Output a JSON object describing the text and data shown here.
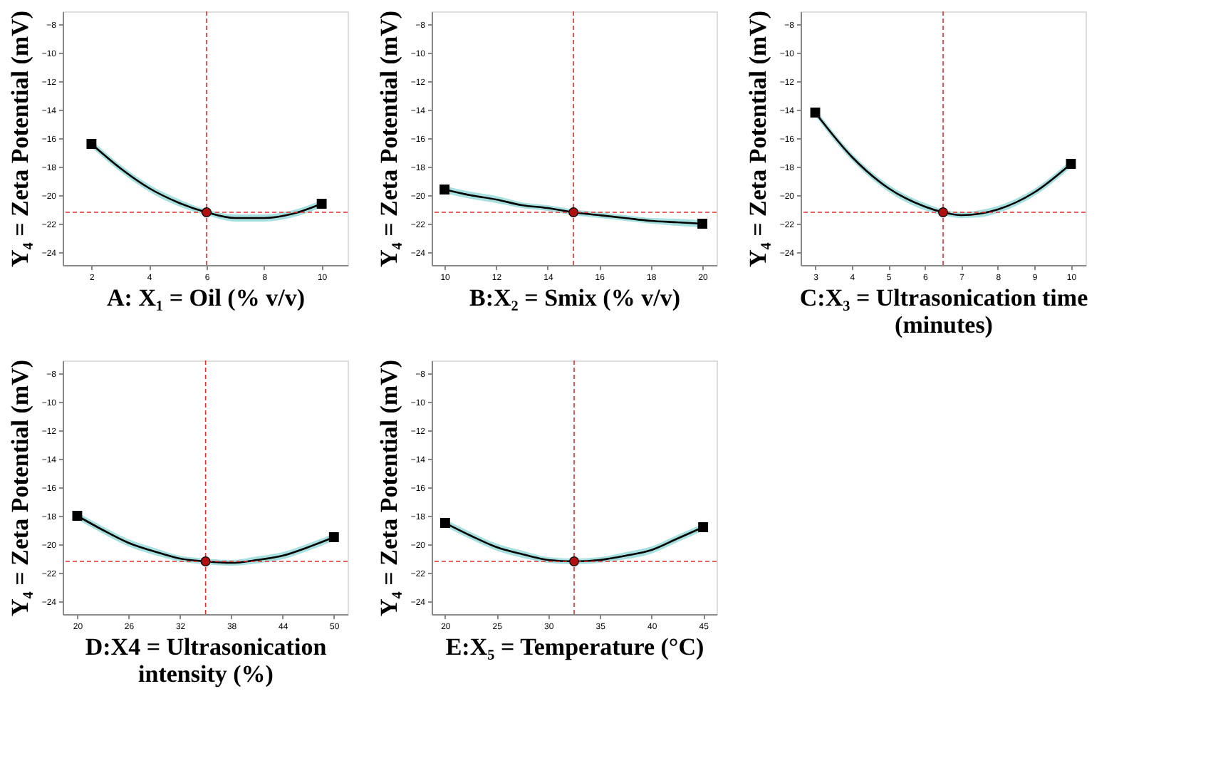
{
  "chart_data": [
    {
      "type": "line",
      "xlabel": "A: X₁ = Oil (% v/v)",
      "ylabel": "Y₄ = Zeta Potential (mV)",
      "xlim": [
        1.0,
        10.9
      ],
      "xticks": [
        2,
        4,
        6,
        8,
        10
      ],
      "ylim": [
        -24.9,
        -7.1
      ],
      "yticks": [
        -8,
        -10,
        -12,
        -14,
        -16,
        -18,
        -20,
        -22,
        -24
      ],
      "grid": false,
      "ref_lines": [
        {
          "axis": "x",
          "value": 6,
          "color": "#e03030",
          "line_style": "dashed"
        },
        {
          "axis": "y",
          "value": -21.2,
          "color": "#e03030",
          "line_style": "dashed"
        }
      ],
      "series": [
        {
          "color": "#000000",
          "x": [
            2,
            3,
            4,
            5,
            6,
            7,
            8,
            9,
            10
          ],
          "values": [
            -16.4,
            -18.1,
            -19.5,
            -20.5,
            -21.2,
            -21.6,
            -21.6,
            -21.3,
            -20.6
          ],
          "lower": [
            -16.65,
            -18.35,
            -19.75,
            -20.75,
            -21.4,
            -21.85,
            -21.85,
            -21.55,
            -20.85
          ],
          "upper": [
            -16.15,
            -17.85,
            -19.25,
            -20.25,
            -21.0,
            -21.35,
            -21.35,
            -21.05,
            -20.35
          ]
        },
        {
          "type": "scatter",
          "marker": "square",
          "color": "#000000",
          "x": [
            2,
            10
          ],
          "values": [
            -16.4,
            -20.6
          ]
        },
        {
          "type": "scatter",
          "marker": "circle",
          "color": "#b01010",
          "x": [
            6
          ],
          "values": [
            -21.2
          ]
        }
      ]
    },
    {
      "type": "line",
      "xlabel": "B:X₂ = Smix (% v/v)",
      "ylabel": "Y₄ = Zeta Potential (mV)",
      "xlim": [
        9.5,
        20.55
      ],
      "xticks": [
        10,
        12,
        14,
        16,
        18,
        20
      ],
      "ylim": [
        -24.9,
        -7.1
      ],
      "yticks": [
        -8,
        -10,
        -12,
        -14,
        -16,
        -18,
        -20,
        -22,
        -24
      ],
      "grid": false,
      "ref_lines": [
        {
          "axis": "x",
          "value": 15,
          "color": "#e03030",
          "line_style": "dashed"
        },
        {
          "axis": "y",
          "value": -21.2,
          "color": "#e03030",
          "line_style": "dashed"
        }
      ],
      "series": [
        {
          "color": "#000000",
          "x": [
            10,
            11,
            12,
            13,
            14,
            15,
            16,
            17,
            18,
            19,
            20
          ],
          "values": [
            -19.6,
            -20.0,
            -20.3,
            -20.7,
            -20.9,
            -21.2,
            -21.4,
            -21.6,
            -21.8,
            -21.9,
            -22.0
          ],
          "lower": [
            -19.85,
            -20.25,
            -20.55,
            -20.9,
            -21.1,
            -21.4,
            -21.6,
            -21.8,
            -22.0,
            -22.15,
            -22.25
          ],
          "upper": [
            -19.35,
            -19.75,
            -20.05,
            -20.5,
            -20.7,
            -21.0,
            -21.2,
            -21.4,
            -21.6,
            -21.65,
            -21.75
          ]
        },
        {
          "type": "scatter",
          "marker": "square",
          "color": "#000000",
          "x": [
            10,
            20
          ],
          "values": [
            -19.6,
            -22.0
          ]
        },
        {
          "type": "scatter",
          "marker": "circle",
          "color": "#b01010",
          "x": [
            15
          ],
          "values": [
            -21.2
          ]
        }
      ]
    },
    {
      "type": "line",
      "xlabel": "C:X₃ = Ultrasonication time (minutes)",
      "ylabel": "Y₄ = Zeta Potential (mV)",
      "xlim": [
        2.6,
        10.4
      ],
      "xticks": [
        3,
        4,
        5,
        6,
        7,
        8,
        9,
        10
      ],
      "ylim": [
        -24.9,
        -7.1
      ],
      "yticks": [
        -8,
        -10,
        -12,
        -14,
        -16,
        -18,
        -20,
        -22,
        -24
      ],
      "grid": false,
      "ref_lines": [
        {
          "axis": "x",
          "value": 6.5,
          "color": "#e03030",
          "line_style": "dashed"
        },
        {
          "axis": "y",
          "value": -21.2,
          "color": "#e03030",
          "line_style": "dashed"
        }
      ],
      "series": [
        {
          "color": "#000000",
          "x": [
            3,
            4,
            5,
            6,
            6.5,
            7,
            7.5,
            8,
            9,
            10
          ],
          "values": [
            -14.2,
            -17.3,
            -19.5,
            -20.8,
            -21.2,
            -21.4,
            -21.3,
            -21.0,
            -19.8,
            -17.8
          ],
          "lower": [
            -14.45,
            -17.55,
            -19.75,
            -21.05,
            -21.4,
            -21.6,
            -21.55,
            -21.25,
            -20.05,
            -18.05
          ],
          "upper": [
            -13.95,
            -17.05,
            -19.25,
            -20.55,
            -21.0,
            -21.2,
            -21.05,
            -20.75,
            -19.55,
            -17.55
          ]
        },
        {
          "type": "scatter",
          "marker": "square",
          "color": "#000000",
          "x": [
            3,
            10
          ],
          "values": [
            -14.2,
            -17.8
          ]
        },
        {
          "type": "scatter",
          "marker": "circle",
          "color": "#b01010",
          "x": [
            6.5
          ],
          "values": [
            -21.2
          ]
        }
      ]
    },
    {
      "type": "line",
      "xlabel": "D:X4 = Ultrasonication intensity (%)",
      "ylabel": "Y₄ = Zeta Potential (mV)",
      "xlim": [
        18.3,
        51.6
      ],
      "xticks": [
        20,
        26,
        32,
        38,
        44,
        50
      ],
      "ylim": [
        -24.9,
        -7.1
      ],
      "yticks": [
        -8,
        -10,
        -12,
        -14,
        -16,
        -18,
        -20,
        -22,
        -24
      ],
      "grid": false,
      "ref_lines": [
        {
          "axis": "x",
          "value": 35,
          "color": "#e03030",
          "line_style": "dashed"
        },
        {
          "axis": "y",
          "value": -21.2,
          "color": "#e03030",
          "line_style": "dashed"
        }
      ],
      "series": [
        {
          "color": "#000000",
          "x": [
            20,
            23,
            26,
            29,
            32,
            35,
            38,
            41,
            44,
            47,
            50
          ],
          "values": [
            -18.0,
            -19.0,
            -19.9,
            -20.5,
            -21.0,
            -21.2,
            -21.3,
            -21.1,
            -20.8,
            -20.2,
            -19.5
          ],
          "lower": [
            -18.25,
            -19.25,
            -20.15,
            -20.75,
            -21.2,
            -21.4,
            -21.5,
            -21.35,
            -21.05,
            -20.45,
            -19.75
          ],
          "upper": [
            -17.75,
            -18.75,
            -19.65,
            -20.25,
            -20.8,
            -21.0,
            -21.1,
            -20.85,
            -20.55,
            -19.95,
            -19.25
          ]
        },
        {
          "type": "scatter",
          "marker": "square",
          "color": "#000000",
          "x": [
            20,
            50
          ],
          "values": [
            -18.0,
            -19.5
          ]
        },
        {
          "type": "scatter",
          "marker": "circle",
          "color": "#b01010",
          "x": [
            35
          ],
          "values": [
            -21.2
          ]
        }
      ]
    },
    {
      "type": "line",
      "xlabel": "E:X₅ = Temperature (°C)",
      "ylabel": "Y₄ = Zeta Potential (mV)",
      "xlim": [
        18.7,
        46.3
      ],
      "xticks": [
        20,
        25,
        30,
        35,
        40,
        45
      ],
      "ylim": [
        -24.9,
        -7.1
      ],
      "yticks": [
        -8,
        -10,
        -12,
        -14,
        -16,
        -18,
        -20,
        -22,
        -24
      ],
      "grid": false,
      "ref_lines": [
        {
          "axis": "x",
          "value": 32.5,
          "color": "#e03030",
          "line_style": "dashed"
        },
        {
          "axis": "y",
          "value": -21.2,
          "color": "#e03030",
          "line_style": "dashed"
        }
      ],
      "series": [
        {
          "color": "#000000",
          "x": [
            20,
            22.5,
            25,
            27.5,
            30,
            32.5,
            35,
            37.5,
            40,
            42.5,
            45
          ],
          "values": [
            -18.5,
            -19.4,
            -20.2,
            -20.7,
            -21.1,
            -21.2,
            -21.1,
            -20.8,
            -20.4,
            -19.6,
            -18.8
          ],
          "lower": [
            -18.75,
            -19.65,
            -20.45,
            -20.95,
            -21.3,
            -21.4,
            -21.3,
            -21.05,
            -20.65,
            -19.85,
            -19.05
          ],
          "upper": [
            -18.25,
            -19.15,
            -19.95,
            -20.45,
            -20.9,
            -21.0,
            -20.9,
            -20.55,
            -20.15,
            -19.35,
            -18.55
          ]
        },
        {
          "type": "scatter",
          "marker": "square",
          "color": "#000000",
          "x": [
            20,
            45
          ],
          "values": [
            -18.5,
            -18.8
          ]
        },
        {
          "type": "scatter",
          "marker": "circle",
          "color": "#b01010",
          "x": [
            32.5
          ],
          "values": [
            -21.2
          ]
        }
      ]
    }
  ]
}
